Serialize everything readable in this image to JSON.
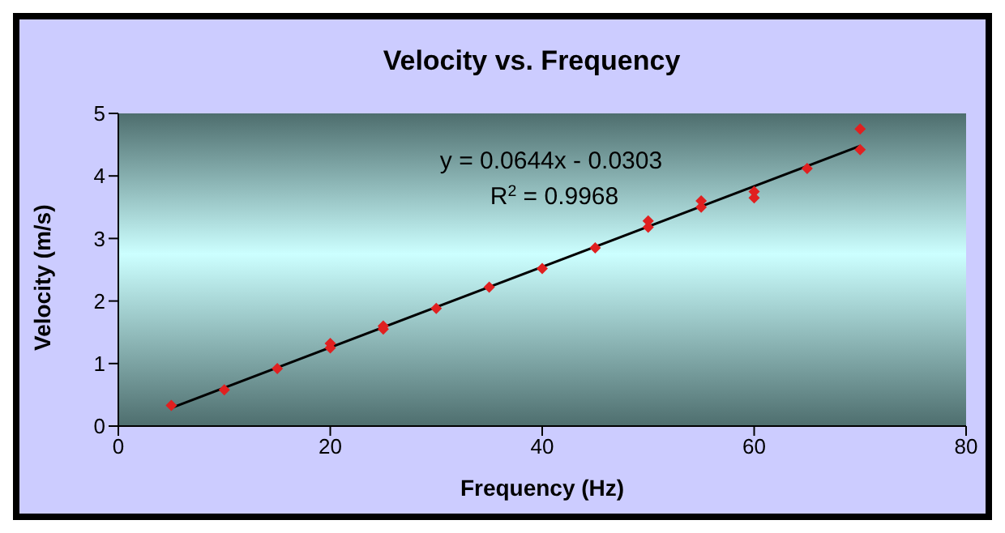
{
  "chart_data": {
    "type": "scatter",
    "title": "Velocity vs. Frequency",
    "xlabel": "Frequency (Hz)",
    "ylabel": "Velocity (m/s)",
    "annotations": [
      "y = 0.0644x - 0.0303",
      "R$^{2}$ = 0.9968"
    ],
    "series": [
      {
        "color": "#e02020",
        "marker": "diamond",
        "x": [
          5,
          10,
          15,
          20,
          20,
          25,
          25,
          30,
          35,
          40,
          45,
          50,
          50,
          55,
          55,
          60,
          60,
          65,
          70,
          70
        ],
        "values": [
          0.33,
          0.58,
          0.92,
          1.25,
          1.32,
          1.55,
          1.6,
          1.88,
          2.22,
          2.52,
          2.85,
          3.18,
          3.28,
          3.5,
          3.6,
          3.65,
          3.75,
          4.12,
          4.42,
          4.75
        ]
      },
      {
        "type": "line",
        "color": "#000000",
        "marker": "none",
        "x": [
          5,
          70
        ],
        "values": [
          0.29,
          4.48
        ]
      }
    ],
    "xlim": [
      0,
      80
    ],
    "xticks": [
      0,
      20,
      40,
      60,
      80
    ],
    "ylim": [
      0,
      5
    ],
    "yticks": [
      0,
      1,
      2,
      3,
      4,
      5
    ],
    "line_style": "solid",
    "grid": false,
    "legend": false
  }
}
